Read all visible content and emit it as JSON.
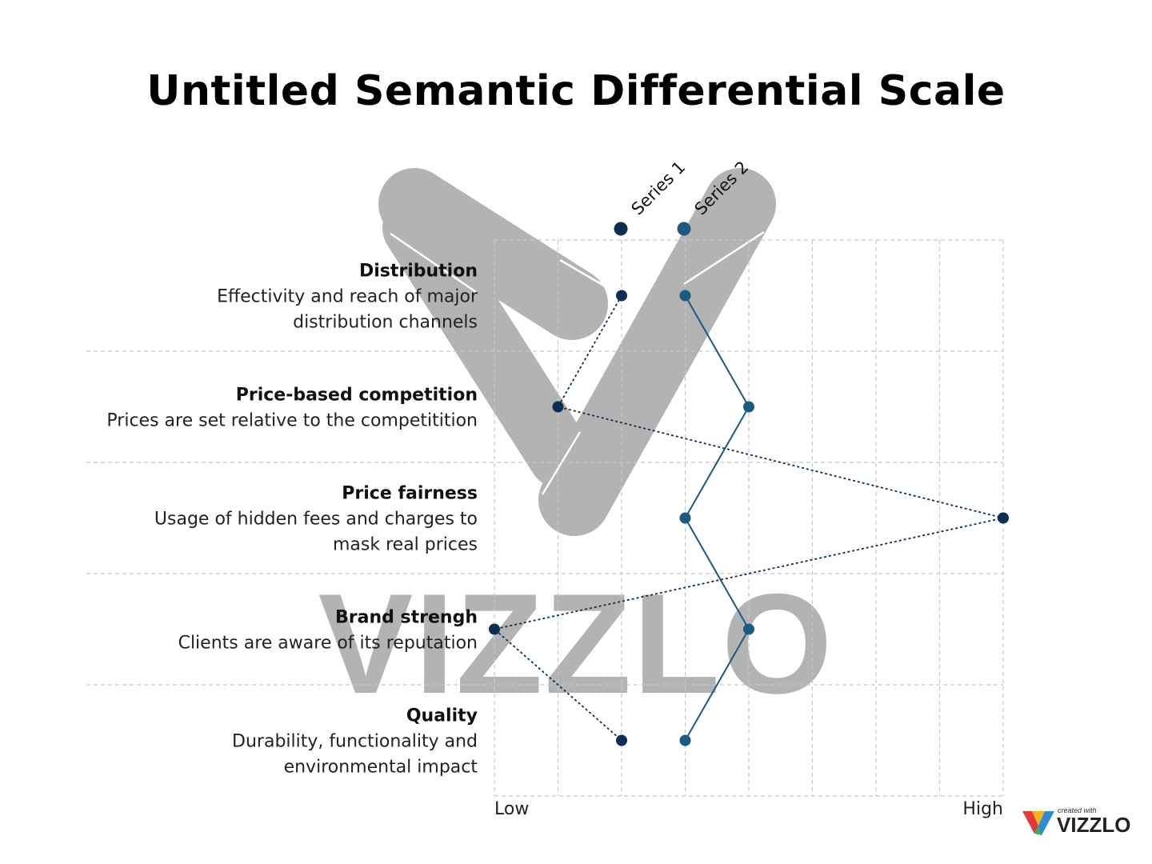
{
  "title": "Untitled Semantic Differential Scale",
  "chart_data": {
    "type": "line",
    "scale": {
      "min": 0,
      "max": 8,
      "low_label": "Low",
      "high_label": "High"
    },
    "series_labels": [
      "Series 1",
      "Series 2"
    ],
    "grid": "dashed",
    "items": [
      {
        "label": "Distribution",
        "description": [
          "Effectivity and reach of major",
          "distribution channels"
        ]
      },
      {
        "label": "Price-based competition",
        "description": [
          "Prices are set relative to the competitition"
        ]
      },
      {
        "label": "Price fairness",
        "description": [
          "Usage of hidden fees and charges to",
          "mask real prices"
        ]
      },
      {
        "label": "Brand strengh",
        "description": [
          "Clients are aware of its reputation"
        ]
      },
      {
        "label": "Quality",
        "description": [
          "Durability, functionality and",
          "environmental impact"
        ]
      }
    ],
    "series": [
      {
        "name": "Series 1",
        "values": [
          2,
          1,
          8,
          0,
          2
        ],
        "color": "#0d2f4f",
        "line": "dotted"
      },
      {
        "name": "Series 2",
        "values": [
          3,
          4,
          3,
          4,
          3
        ],
        "color": "#1c5a82",
        "line": "solid"
      }
    ]
  },
  "watermark": {
    "text": "VIZZLO",
    "color": "#b3b3b3"
  },
  "badge": {
    "small_text": "created with",
    "brand": "VIZZLO"
  }
}
